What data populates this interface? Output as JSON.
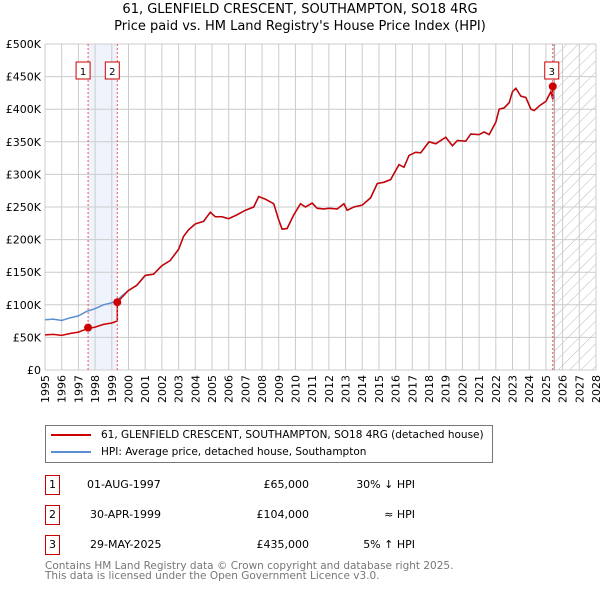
{
  "chart_data": {
    "type": "line",
    "title": "61, GLENFIELD CRESCENT, SOUTHAMPTON, SO18 4RG",
    "subtitle": "Price paid vs. HM Land Registry's House Price Index (HPI)",
    "xlim": [
      1995,
      2028
    ],
    "ylim": [
      0,
      500000
    ],
    "x_ticks": [
      "1995",
      "1996",
      "1997",
      "1998",
      "1999",
      "2000",
      "2001",
      "2002",
      "2003",
      "2004",
      "2005",
      "2006",
      "2007",
      "2008",
      "2009",
      "2010",
      "2011",
      "2012",
      "2013",
      "2014",
      "2015",
      "2016",
      "2017",
      "2018",
      "2019",
      "2020",
      "2021",
      "2022",
      "2023",
      "2024",
      "2025",
      "2026",
      "2027",
      "2028"
    ],
    "y_ticks": [
      {
        "v": 0,
        "l": "£0"
      },
      {
        "v": 50000,
        "l": "£50K"
      },
      {
        "v": 100000,
        "l": "£100K"
      },
      {
        "v": 150000,
        "l": "£150K"
      },
      {
        "v": 200000,
        "l": "£200K"
      },
      {
        "v": 250000,
        "l": "£250K"
      },
      {
        "v": 300000,
        "l": "£300K"
      },
      {
        "v": 350000,
        "l": "£350K"
      },
      {
        "v": 400000,
        "l": "£400K"
      },
      {
        "v": 450000,
        "l": "£450K"
      },
      {
        "v": 500000,
        "l": "£500K"
      }
    ],
    "grid": true,
    "hpi": [
      [
        1995,
        77
      ],
      [
        1995.5,
        78
      ],
      [
        1996,
        76
      ],
      [
        1996.5,
        80
      ],
      [
        1997,
        83
      ],
      [
        1997.5,
        90
      ],
      [
        1998,
        94
      ],
      [
        1998.5,
        100
      ],
      [
        1999,
        103
      ],
      [
        1999.3,
        107
      ],
      [
        2000,
        122
      ],
      [
        2000.5,
        130
      ],
      [
        2001,
        145
      ],
      [
        2001.5,
        147
      ],
      [
        2002,
        160
      ],
      [
        2002.5,
        168
      ],
      [
        2003,
        185
      ],
      [
        2003.3,
        205
      ],
      [
        2003.6,
        215
      ],
      [
        2004,
        224
      ],
      [
        2004.5,
        228
      ],
      [
        2004.9,
        242
      ],
      [
        2005.2,
        235
      ],
      [
        2005.6,
        235
      ],
      [
        2006,
        232
      ],
      [
        2006.5,
        238
      ],
      [
        2007,
        245
      ],
      [
        2007.5,
        250
      ],
      [
        2007.8,
        266
      ],
      [
        2008.2,
        262
      ],
      [
        2008.7,
        255
      ],
      [
        2009,
        230
      ],
      [
        2009.2,
        216
      ],
      [
        2009.5,
        217
      ],
      [
        2009.9,
        238
      ],
      [
        2010.3,
        255
      ],
      [
        2010.6,
        250
      ],
      [
        2011,
        256
      ],
      [
        2011.3,
        248
      ],
      [
        2011.7,
        247
      ],
      [
        2012,
        248
      ],
      [
        2012.5,
        247
      ],
      [
        2012.9,
        255
      ],
      [
        2013.1,
        245
      ],
      [
        2013.5,
        250
      ],
      [
        2014,
        253
      ],
      [
        2014.5,
        264
      ],
      [
        2014.9,
        286
      ],
      [
        2015.3,
        288
      ],
      [
        2015.7,
        292
      ],
      [
        2016.2,
        315
      ],
      [
        2016.5,
        311
      ],
      [
        2016.8,
        329
      ],
      [
        2017.2,
        334
      ],
      [
        2017.5,
        333
      ],
      [
        2018,
        350
      ],
      [
        2018.4,
        347
      ],
      [
        2019,
        357
      ],
      [
        2019.4,
        344
      ],
      [
        2019.7,
        352
      ],
      [
        2020.2,
        351
      ],
      [
        2020.5,
        362
      ],
      [
        2021,
        361
      ],
      [
        2021.3,
        365
      ],
      [
        2021.6,
        361
      ],
      [
        2022,
        380
      ],
      [
        2022.2,
        400
      ],
      [
        2022.5,
        402
      ],
      [
        2022.8,
        410
      ],
      [
        2023,
        427
      ],
      [
        2023.2,
        432
      ],
      [
        2023.5,
        420
      ],
      [
        2023.8,
        418
      ],
      [
        2024.1,
        400
      ],
      [
        2024.3,
        398
      ],
      [
        2024.6,
        405
      ],
      [
        2025,
        412
      ],
      [
        2025.3,
        427
      ],
      [
        2025.5,
        417
      ]
    ],
    "sales": [
      {
        "n": "1",
        "x": 1997.58,
        "y": 65000
      },
      {
        "n": "2",
        "x": 1999.33,
        "y": 104000
      },
      {
        "n": "3",
        "x": 2025.41,
        "y": 435000
      }
    ],
    "forecast_from": 2025.5
  },
  "legend": {
    "property": "61, GLENFIELD CRESCENT, SOUTHAMPTON, SO18 4RG (detached house)",
    "hpi": "HPI: Average price, detached house, Southampton"
  },
  "colors": {
    "property": "#cc0000",
    "hpi": "#5b8fd1"
  },
  "transactions": [
    {
      "n": "1",
      "date": "01-AUG-1997",
      "price": "£65,000",
      "rel": "30% ↓ HPI"
    },
    {
      "n": "2",
      "date": "30-APR-1999",
      "price": "£104,000",
      "rel": "≈ HPI"
    },
    {
      "n": "3",
      "date": "29-MAY-2025",
      "price": "£435,000",
      "rel": "5% ↑ HPI"
    }
  ],
  "footer": {
    "line1": "Contains HM Land Registry data © Crown copyright and database right 2025.",
    "line2": "This data is licensed under the Open Government Licence v3.0."
  }
}
